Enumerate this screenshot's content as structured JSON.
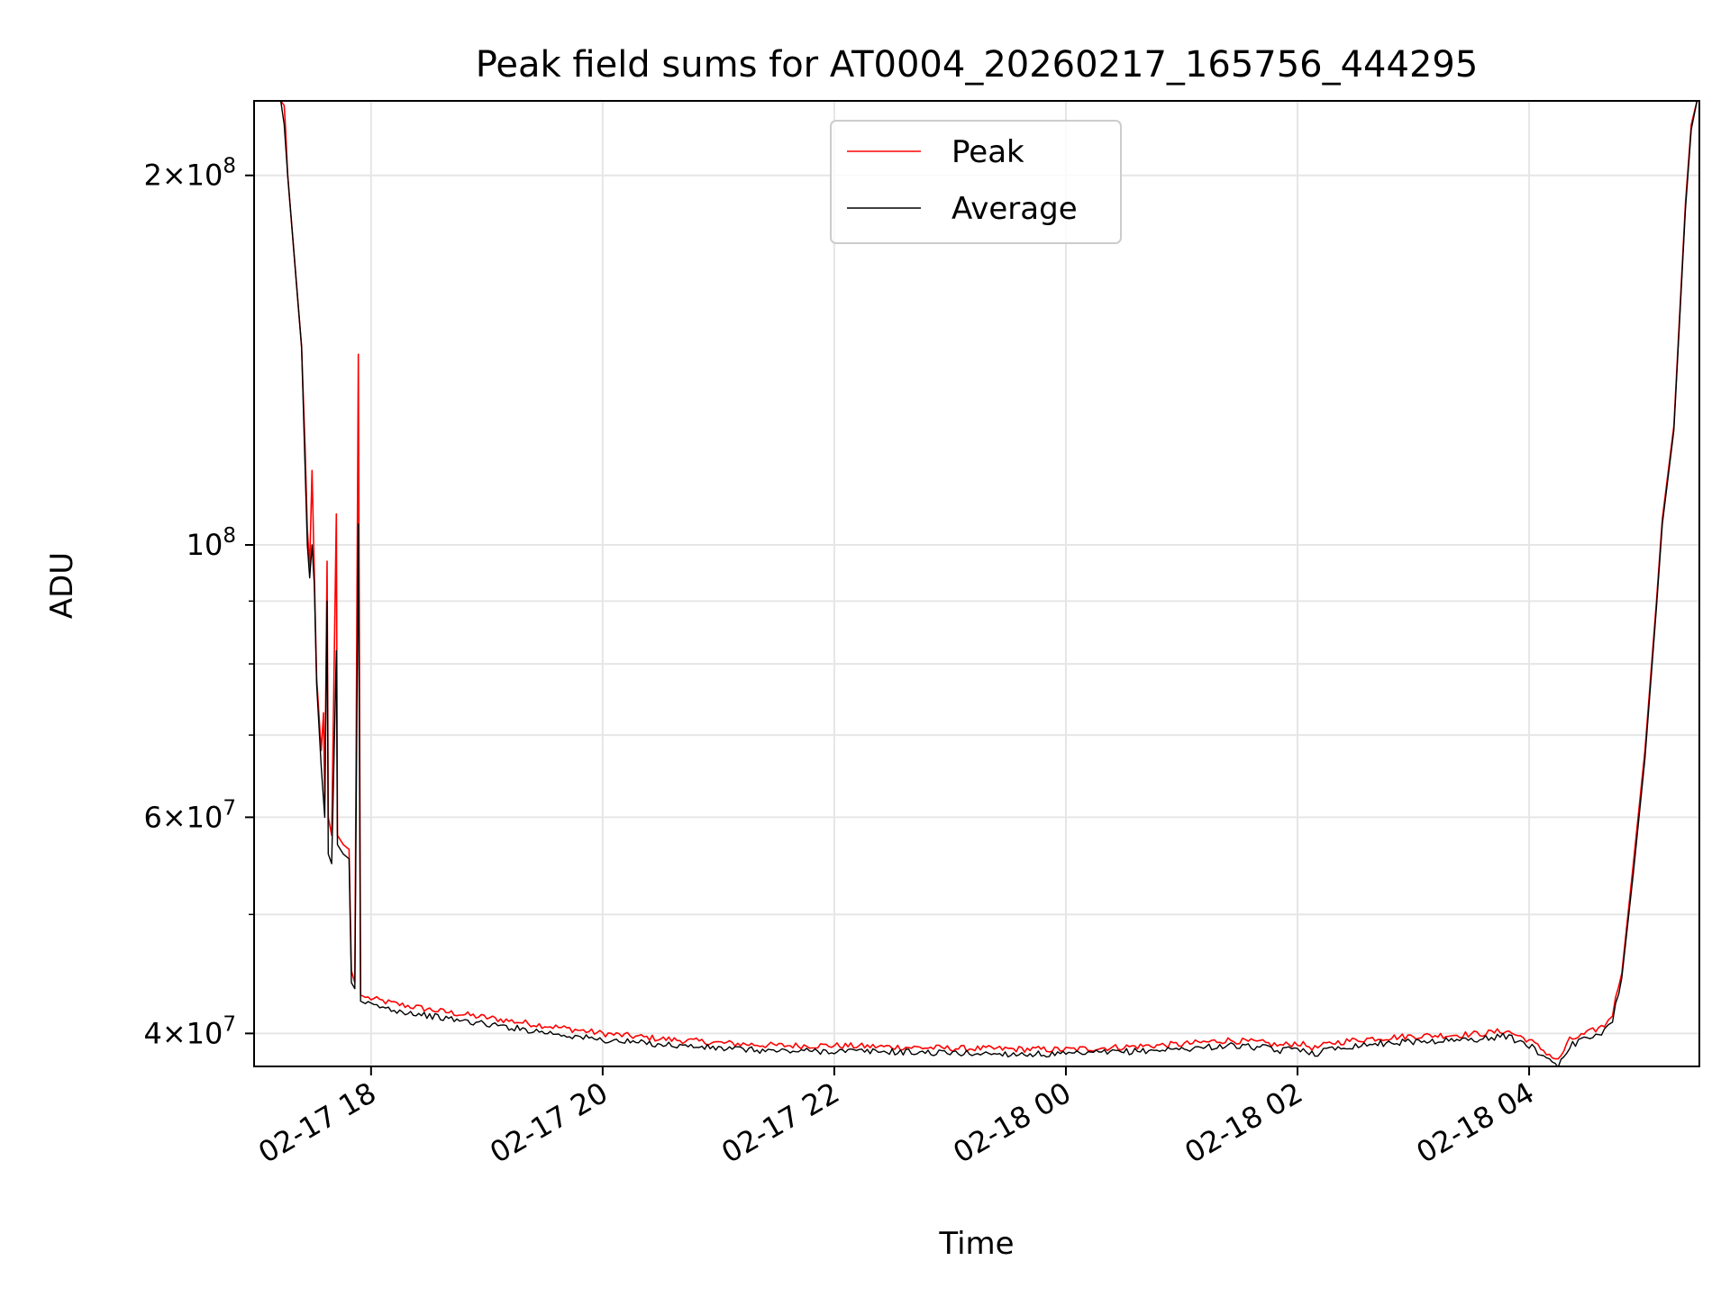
{
  "chart_data": {
    "type": "line",
    "title": "Peak field sums for AT0004_20260217_165756_444295",
    "xlabel": "Time",
    "ylabel": "ADU",
    "yscale": "log",
    "xlim_hours": [
      16.99,
      29.47
    ],
    "ylim": [
      37600000,
      230000000
    ],
    "grid": true,
    "legend_position": "upper center",
    "x_tick_hours": [
      18,
      20,
      22,
      24,
      26,
      28
    ],
    "x_tick_labels": [
      "02-17 18",
      "02-17 20",
      "02-17 22",
      "02-18 00",
      "02-18 02",
      "02-18 04"
    ],
    "y_major_ticks": [
      {
        "value": 40000000,
        "mantissa": "4",
        "exponent": "7"
      },
      {
        "value": 60000000,
        "mantissa": "6",
        "exponent": "7"
      },
      {
        "value": 100000000,
        "mantissa": "",
        "exponent": "8"
      },
      {
        "value": 200000000,
        "mantissa": "2",
        "exponent": "8"
      }
    ],
    "y_minor_ticks": [
      50000000,
      70000000,
      80000000,
      90000000
    ],
    "series": [
      {
        "name": "Peak",
        "color": "#ff0000",
        "points": [
          [
            17.0,
            230000000
          ],
          [
            17.15,
            230000000
          ],
          [
            17.22,
            230000000
          ],
          [
            17.25,
            228000000
          ],
          [
            17.26,
            220000000
          ],
          [
            17.28,
            200000000
          ],
          [
            17.4,
            145000000
          ],
          [
            17.43,
            120000000
          ],
          [
            17.45,
            103000000
          ],
          [
            17.47,
            96000000
          ],
          [
            17.49,
            115000000
          ],
          [
            17.51,
            95000000
          ],
          [
            17.53,
            78000000
          ],
          [
            17.57,
            68000000
          ],
          [
            17.59,
            73000000
          ],
          [
            17.6,
            62000000
          ],
          [
            17.62,
            97000000
          ],
          [
            17.63,
            60000000
          ],
          [
            17.66,
            58000000
          ],
          [
            17.7,
            106000000
          ],
          [
            17.71,
            58000000
          ],
          [
            17.76,
            57000000
          ],
          [
            17.81,
            56500000
          ],
          [
            17.83,
            45000000
          ],
          [
            17.86,
            44000000
          ],
          [
            17.89,
            143000000
          ],
          [
            17.91,
            43000000
          ],
          [
            17.95,
            42800000
          ],
          [
            18.2,
            42300000
          ],
          [
            18.6,
            41700000
          ],
          [
            19.0,
            41200000
          ],
          [
            19.5,
            40600000
          ],
          [
            20.0,
            40000000
          ],
          [
            20.5,
            39600000
          ],
          [
            21.0,
            39300000
          ],
          [
            21.5,
            39100000
          ],
          [
            22.0,
            39100000
          ],
          [
            22.5,
            39000000
          ],
          [
            23.0,
            38900000
          ],
          [
            23.5,
            38850000
          ],
          [
            24.0,
            38800000
          ],
          [
            24.5,
            39000000
          ],
          [
            25.0,
            39200000
          ],
          [
            25.4,
            39500000
          ],
          [
            25.7,
            39300000
          ],
          [
            25.85,
            39100000
          ],
          [
            26.0,
            39300000
          ],
          [
            26.15,
            38900000
          ],
          [
            26.3,
            39300000
          ],
          [
            26.6,
            39600000
          ],
          [
            27.0,
            39800000
          ],
          [
            27.4,
            39900000
          ],
          [
            27.6,
            40000000
          ],
          [
            27.8,
            40200000
          ],
          [
            28.0,
            39500000
          ],
          [
            28.25,
            38000000
          ],
          [
            28.35,
            39500000
          ],
          [
            28.5,
            40000000
          ],
          [
            28.65,
            40600000
          ],
          [
            28.72,
            41500000
          ],
          [
            28.8,
            45000000
          ],
          [
            28.9,
            55000000
          ],
          [
            29.0,
            68000000
          ],
          [
            29.1,
            90000000
          ],
          [
            29.15,
            105000000
          ],
          [
            29.25,
            125000000
          ],
          [
            29.35,
            190000000
          ],
          [
            29.4,
            220000000
          ],
          [
            29.45,
            230000000
          ]
        ]
      },
      {
        "name": "Average",
        "color": "#000000",
        "points": [
          [
            17.0,
            230000000
          ],
          [
            17.15,
            230000000
          ],
          [
            17.22,
            230000000
          ],
          [
            17.25,
            220000000
          ],
          [
            17.28,
            200000000
          ],
          [
            17.4,
            145000000
          ],
          [
            17.45,
            100000000
          ],
          [
            17.47,
            94000000
          ],
          [
            17.49,
            100000000
          ],
          [
            17.51,
            93000000
          ],
          [
            17.53,
            77000000
          ],
          [
            17.57,
            66000000
          ],
          [
            17.6,
            60000000
          ],
          [
            17.62,
            90000000
          ],
          [
            17.63,
            56000000
          ],
          [
            17.66,
            55000000
          ],
          [
            17.7,
            82000000
          ],
          [
            17.71,
            57000000
          ],
          [
            17.76,
            56000000
          ],
          [
            17.81,
            55500000
          ],
          [
            17.83,
            44000000
          ],
          [
            17.86,
            43500000
          ],
          [
            17.89,
            104000000
          ],
          [
            17.91,
            42500000
          ],
          [
            17.95,
            42300000
          ],
          [
            18.2,
            41800000
          ],
          [
            18.6,
            41200000
          ],
          [
            19.0,
            40700000
          ],
          [
            19.5,
            40100000
          ],
          [
            20.0,
            39500000
          ],
          [
            20.5,
            39200000
          ],
          [
            21.0,
            38900000
          ],
          [
            21.5,
            38700000
          ],
          [
            22.0,
            38700000
          ],
          [
            22.5,
            38650000
          ],
          [
            23.0,
            38550000
          ],
          [
            23.5,
            38500000
          ],
          [
            24.0,
            38450000
          ],
          [
            24.5,
            38650000
          ],
          [
            25.0,
            38850000
          ],
          [
            25.4,
            39100000
          ],
          [
            25.7,
            38950000
          ],
          [
            25.85,
            38700000
          ],
          [
            26.0,
            38950000
          ],
          [
            26.15,
            38500000
          ],
          [
            26.3,
            38900000
          ],
          [
            26.6,
            39200000
          ],
          [
            27.0,
            39400000
          ],
          [
            27.4,
            39500000
          ],
          [
            27.6,
            39600000
          ],
          [
            27.8,
            39800000
          ],
          [
            28.0,
            39100000
          ],
          [
            28.25,
            37700000
          ],
          [
            28.35,
            39100000
          ],
          [
            28.5,
            39600000
          ],
          [
            28.65,
            40200000
          ],
          [
            28.72,
            41000000
          ],
          [
            28.8,
            44500000
          ],
          [
            28.9,
            54000000
          ],
          [
            29.0,
            67000000
          ],
          [
            29.1,
            89000000
          ],
          [
            29.15,
            104000000
          ],
          [
            29.25,
            124000000
          ],
          [
            29.35,
            188000000
          ],
          [
            29.4,
            218000000
          ],
          [
            29.45,
            230000000
          ]
        ]
      }
    ]
  }
}
